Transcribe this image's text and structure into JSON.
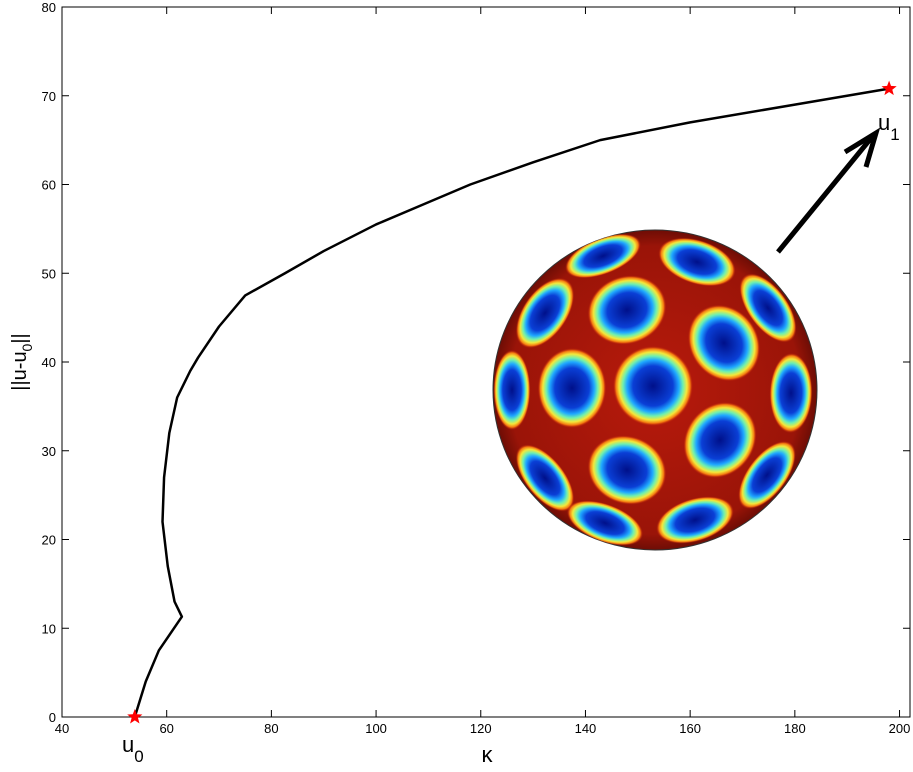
{
  "chart_data": {
    "type": "line",
    "xlabel": "κ",
    "ylabel": [
      "||u-u",
      "0",
      "||"
    ],
    "series": [
      {
        "color": "#000000",
        "x": [
          53.9,
          56,
          58.5,
          62.9,
          61.5,
          60.2,
          59.2,
          59.5,
          60.5,
          62,
          64.5,
          66,
          70,
          75,
          82.6,
          90,
          100,
          110,
          118,
          130,
          142.8,
          160,
          180,
          198
        ],
        "values": [
          0,
          4,
          7.5,
          11.3,
          13,
          17,
          22,
          27,
          32,
          36,
          39,
          40.5,
          44,
          47.5,
          50,
          52.5,
          55.5,
          58,
          60,
          62.5,
          65,
          67,
          69,
          70.8
        ]
      }
    ],
    "markers": {
      "color": "#ff0000",
      "x": [
        53.9,
        198
      ],
      "values": [
        0,
        70.8
      ]
    },
    "annotations": [
      {
        "text": "u",
        "sub": "0"
      },
      {
        "text": "u",
        "sub": "1"
      }
    ],
    "xlim": [
      40,
      202
    ],
    "xticks": [
      40,
      60,
      80,
      100,
      120,
      140,
      160,
      180,
      200
    ],
    "ylim": [
      0,
      80
    ],
    "yticks": [
      0,
      10,
      20,
      30,
      40,
      50,
      60,
      70,
      80
    ]
  }
}
